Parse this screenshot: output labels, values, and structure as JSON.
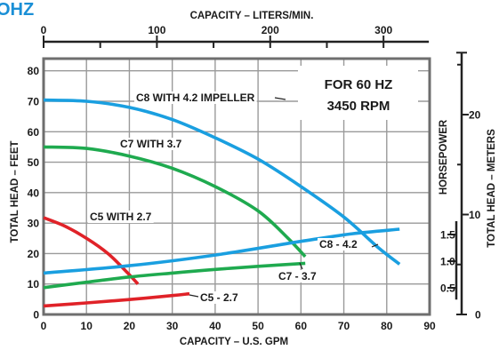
{
  "page": {
    "title_fragment": "OHZ"
  },
  "chart_data": {
    "type": "line",
    "panel_label": {
      "line1": "FOR 60 HZ",
      "line2": "3450 RPM"
    },
    "xlabel": "CAPACITY – U.S. GPM",
    "x2label": "CAPACITY – LITERS/MIN.",
    "ylabel": "TOTAL HEAD – FEET",
    "hp_label": "HORSEPOWER",
    "y2label": "TOTAL HEAD – METERS",
    "xlim": [
      0,
      90
    ],
    "ylim": [
      0,
      84
    ],
    "x_ticks": [
      0,
      10,
      20,
      30,
      40,
      50,
      60,
      70,
      80,
      90
    ],
    "y_ticks": [
      0,
      10,
      20,
      30,
      40,
      50,
      60,
      70,
      80
    ],
    "x2_ticks": [
      0,
      100,
      200,
      300
    ],
    "x2_minor": [
      50,
      150,
      250
    ],
    "hp_ticks": [
      {
        "value": 0.5,
        "label": "0.5"
      },
      {
        "value": 1.0,
        "label": "1.0"
      },
      {
        "value": 1.5,
        "label": "1.5"
      }
    ],
    "y2_ticks": [
      {
        "value": 0,
        "label": "0"
      },
      {
        "value": 10,
        "label": "10"
      },
      {
        "value": 20,
        "label": "20"
      }
    ],
    "grid": true,
    "colors": {
      "blue": "#1a9fe0",
      "green": "#1faa4f",
      "red": "#e02228",
      "axis": "#222222",
      "grid": "#9a9a9a"
    },
    "series": [
      {
        "name": "C8 WITH 4.2 IMPELLER",
        "kind": "head",
        "color": "#1a9fe0",
        "points": [
          [
            0,
            70.4
          ],
          [
            10,
            70
          ],
          [
            20,
            68
          ],
          [
            30,
            64
          ],
          [
            40,
            58
          ],
          [
            50,
            51
          ],
          [
            60,
            42
          ],
          [
            70,
            32
          ],
          [
            78,
            22
          ],
          [
            83,
            16.5
          ]
        ]
      },
      {
        "name": "C7 WITH 3.7",
        "kind": "head",
        "color": "#1faa4f",
        "points": [
          [
            0,
            55
          ],
          [
            10,
            54.5
          ],
          [
            20,
            52
          ],
          [
            30,
            48
          ],
          [
            40,
            42
          ],
          [
            50,
            34
          ],
          [
            57,
            25
          ],
          [
            61,
            19
          ]
        ]
      },
      {
        "name": "C5 WITH 2.7",
        "kind": "head",
        "color": "#e02228",
        "points": [
          [
            0,
            31.8
          ],
          [
            5,
            29
          ],
          [
            10,
            25
          ],
          [
            15,
            20
          ],
          [
            19,
            14.5
          ],
          [
            22,
            10
          ]
        ]
      },
      {
        "name": "C8 - 4.2",
        "kind": "horsepower",
        "color": "#1a9fe0",
        "points": [
          [
            0,
            13.6
          ],
          [
            20,
            16
          ],
          [
            40,
            19.5
          ],
          [
            60,
            24
          ],
          [
            72,
            26.5
          ],
          [
            83,
            28
          ]
        ]
      },
      {
        "name": "C7 - 3.7",
        "kind": "horsepower",
        "color": "#1faa4f",
        "points": [
          [
            0,
            8.8
          ],
          [
            10,
            10.6
          ],
          [
            20,
            12.3
          ],
          [
            30,
            13.6
          ],
          [
            40,
            14.8
          ],
          [
            50,
            15.8
          ],
          [
            61,
            16.8
          ]
        ]
      },
      {
        "name": "C5 - 2.7",
        "kind": "horsepower",
        "color": "#e02228",
        "points": [
          [
            0,
            2.8
          ],
          [
            10,
            3.8
          ],
          [
            20,
            4.9
          ],
          [
            30,
            6.2
          ],
          [
            34,
            6.8
          ]
        ]
      }
    ]
  }
}
